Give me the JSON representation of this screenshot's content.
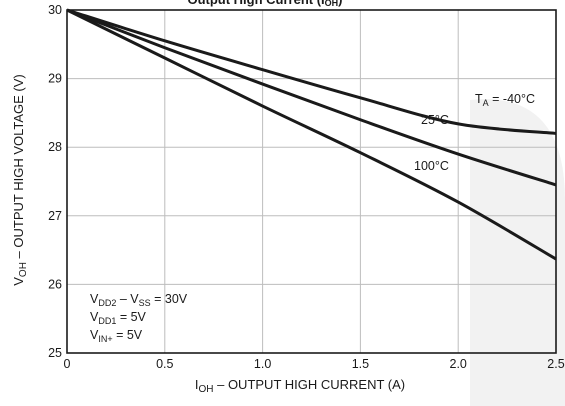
{
  "chart_data": {
    "type": "line",
    "title": "Output High Current (IOH)",
    "xlabel": "IOH – OUTPUT HIGH CURRENT (A)",
    "ylabel": "VOH – OUTPUT HIGH VOLTAGE (V)",
    "xlim": [
      0,
      2.5
    ],
    "ylim": [
      25,
      30
    ],
    "xticks": [
      "0",
      "0.5",
      "1.0",
      "1.5",
      "2.0",
      "2.5"
    ],
    "yticks": [
      "25",
      "26",
      "27",
      "28",
      "29",
      "30"
    ],
    "grid": true,
    "series": [
      {
        "name": "TA = -40°C",
        "x": [
          0,
          0.5,
          1.0,
          1.5,
          2.0,
          2.5
        ],
        "y": [
          30.0,
          29.55,
          29.13,
          28.72,
          28.34,
          28.2
        ]
      },
      {
        "name": "25°C",
        "x": [
          0,
          0.5,
          1.0,
          1.5,
          2.0,
          2.5
        ],
        "y": [
          30.0,
          29.45,
          28.92,
          28.4,
          27.9,
          27.45
        ]
      },
      {
        "name": "100°C",
        "x": [
          0,
          0.5,
          1.0,
          1.5,
          2.0,
          2.5
        ],
        "y": [
          30.0,
          29.3,
          28.6,
          27.92,
          27.2,
          26.37
        ]
      }
    ],
    "annotations": [
      "VDD2 – VSS = 30V",
      "VDD1 = 5V",
      "VIN+ = 5V"
    ]
  }
}
